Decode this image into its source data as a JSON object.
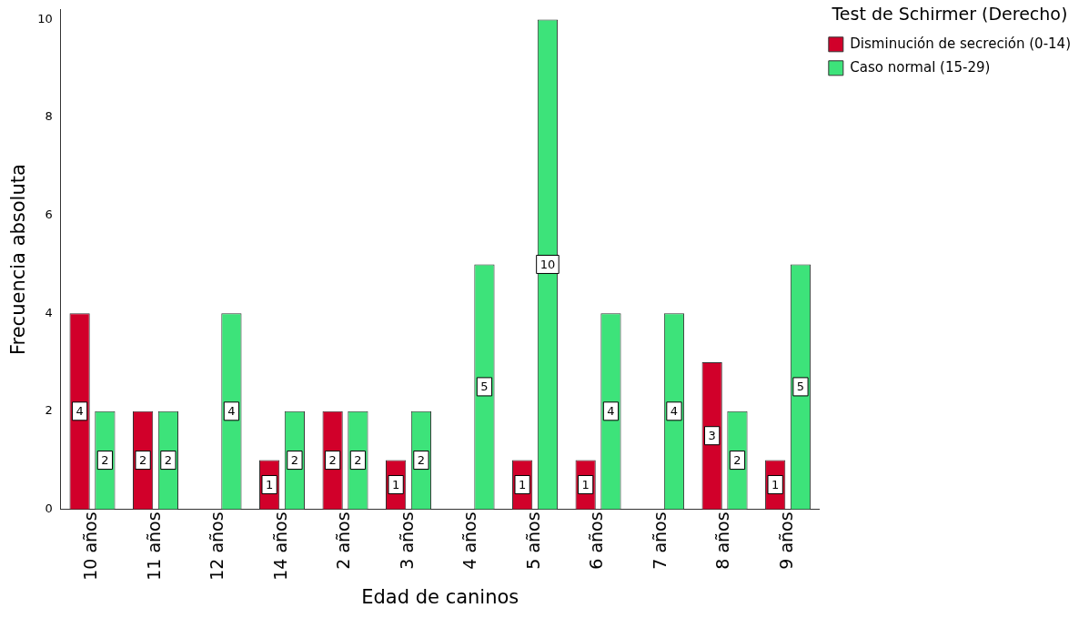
{
  "chart_data": {
    "type": "bar",
    "xlabel": "Edad de caninos",
    "ylabel": "Frecuencia absoluta",
    "legend_title": "Test de Schirmer (Derecho)",
    "categories": [
      "10 años",
      "11 años",
      "12 años",
      "14 años",
      "2 años",
      "3 años",
      "4 años",
      "5 años",
      "6 años",
      "7 años",
      "8 años",
      "9 años"
    ],
    "series": [
      {
        "name": "Disminución de secreción (0-14)",
        "color": "#d1002a",
        "values": [
          4,
          2,
          null,
          1,
          2,
          1,
          null,
          1,
          1,
          null,
          3,
          1
        ]
      },
      {
        "name": "Caso normal (15-29)",
        "color": "#3de37a",
        "values": [
          2,
          2,
          4,
          2,
          2,
          2,
          5,
          10,
          4,
          4,
          2,
          5
        ]
      }
    ],
    "ylim": [
      0,
      10.2
    ],
    "yticks": [
      0,
      2,
      4,
      6,
      8,
      10
    ],
    "grid": false,
    "legend": "top right",
    "data_labels": true
  }
}
